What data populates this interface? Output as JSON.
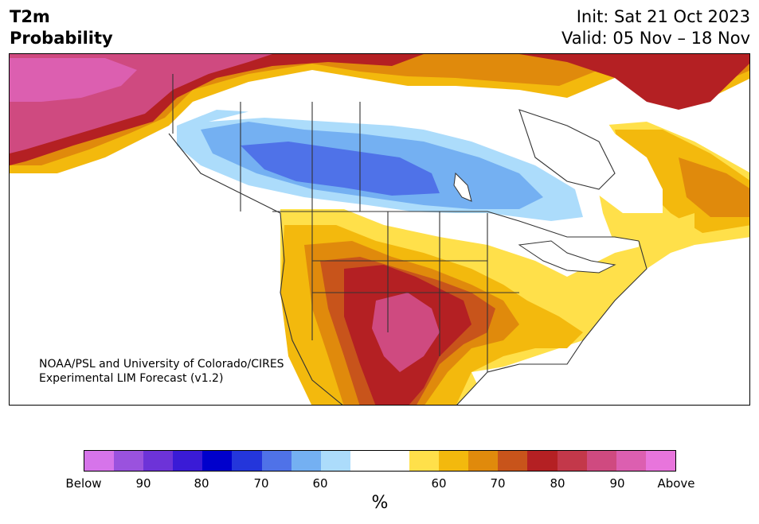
{
  "header": {
    "title_line1": "T2m",
    "title_line2": "Probability",
    "init": "Init: Sat 21 Oct 2023",
    "valid": "Valid: 05 Nov – 18 Nov"
  },
  "credit": {
    "line1": "NOAA/PSL and University of Colorado/CIRES",
    "line2": "Experimental LIM Forecast (v1.2)"
  },
  "colorbar": {
    "colors": [
      "#d674ea",
      "#9a52de",
      "#6d33d8",
      "#3a1bd6",
      "#0000cc",
      "#2436db",
      "#4f72e8",
      "#74b0f2",
      "#acdcfb",
      "#ffffff",
      "#ffffff",
      "#ffe04a",
      "#f3b90d",
      "#e08a0c",
      "#c8541b",
      "#b42023",
      "#c3384a",
      "#cf4a80",
      "#dc5fb0",
      "#e875dc"
    ],
    "ticks": [
      "Below",
      "90",
      "80",
      "70",
      "60",
      "60",
      "70",
      "80",
      "90",
      "Above"
    ],
    "unit": "%"
  },
  "map_colors": {
    "above_90": "#dc5fb0",
    "above_80": "#cf4a80",
    "above_75": "#b42023",
    "above_70": "#c8541b",
    "above_65": "#e08a0c",
    "above_60": "#f3b90d",
    "above_55": "#ffe04a",
    "below_55": "#acdcfb",
    "below_60": "#74b0f2",
    "below_65": "#4f72e8"
  }
}
